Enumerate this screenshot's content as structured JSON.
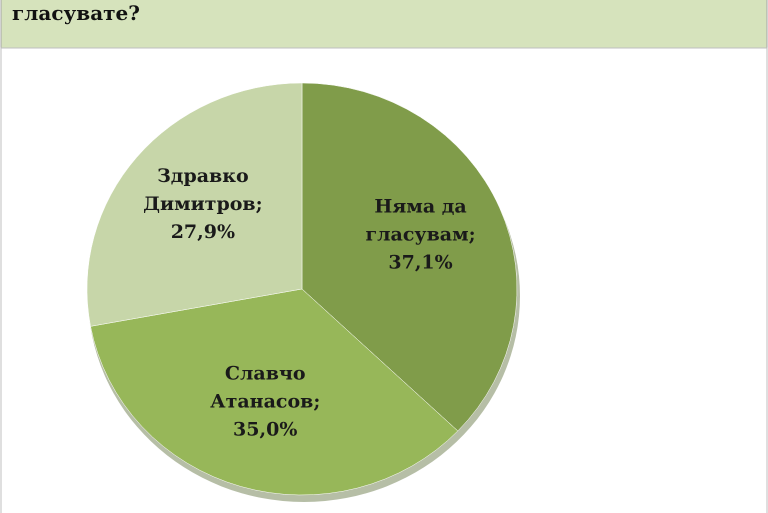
{
  "chart_data": {
    "type": "pie",
    "title": "гласувате?",
    "categories": [
      "Няма да гласувам;",
      "Славчо Атанасов;",
      "Здравко Димитров;"
    ],
    "values": [
      37.1,
      35.0,
      27.9
    ],
    "value_labels": [
      "37,1%",
      "35,0%",
      "27,9%"
    ],
    "colors": [
      "#809c4a",
      "#97b759",
      "#c7d6a9"
    ]
  }
}
